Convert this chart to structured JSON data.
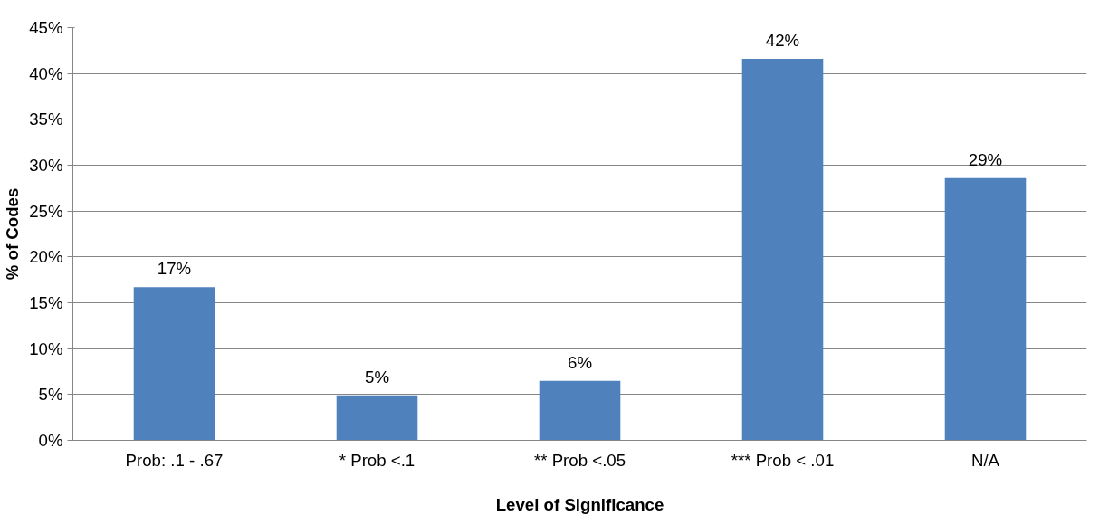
{
  "chart_data": {
    "type": "bar",
    "xlabel": "Level of Significance",
    "ylabel": "% of Codes",
    "categories": [
      "Prob: .1 - .67",
      "* Prob <.1",
      "** Prob <.05",
      "*** Prob < .01",
      "N/A"
    ],
    "values": [
      16.7,
      4.9,
      6.5,
      41.6,
      28.6
    ],
    "value_labels": [
      "17%",
      "5%",
      "6%",
      "42%",
      "29%"
    ],
    "color": "#4f81bd",
    "ylim": [
      0,
      45
    ],
    "yticks": [
      {
        "value": 0,
        "label": "0%"
      },
      {
        "value": 5,
        "label": "5%"
      },
      {
        "value": 10,
        "label": "10%"
      },
      {
        "value": 15,
        "label": "15%"
      },
      {
        "value": 20,
        "label": "20%"
      },
      {
        "value": 25,
        "label": "25%"
      },
      {
        "value": 30,
        "label": "30%"
      },
      {
        "value": 35,
        "label": "35%"
      },
      {
        "value": 40,
        "label": "40%"
      },
      {
        "value": 45,
        "label": "45%"
      }
    ],
    "grid": "y"
  }
}
